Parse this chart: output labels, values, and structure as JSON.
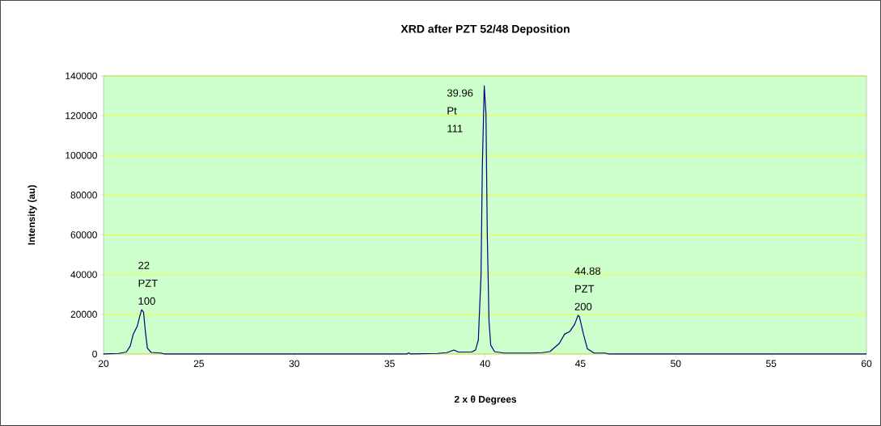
{
  "chart_data": {
    "type": "line",
    "title": "XRD after PZT 52/48 Deposition",
    "xlabel": "2 x θ Degrees",
    "ylabel": "Intensity (au)",
    "x": [
      20,
      20.8,
      21.2,
      21.4,
      21.56,
      21.77,
      21.9,
      22.0,
      22.1,
      22.2,
      22.3,
      22.5,
      23.0,
      23.2,
      30,
      35.9,
      36.0,
      36.1,
      37.5,
      38.0,
      38.37,
      38.6,
      39.3,
      39.5,
      39.65,
      39.72,
      39.79,
      39.86,
      39.96,
      40.05,
      40.12,
      40.21,
      40.3,
      40.5,
      41.0,
      42.5,
      43.0,
      43.4,
      43.89,
      44.17,
      44.45,
      44.7,
      44.88,
      44.95,
      45.16,
      45.37,
      45.72,
      46.3,
      46.5,
      60
    ],
    "values": [
      0,
      300,
      1000,
      4000,
      10000,
      14000,
      19000,
      22300,
      21000,
      11000,
      3000,
      800,
      500,
      0,
      0,
      0,
      600,
      0,
      300,
      700,
      2000,
      1000,
      1000,
      2000,
      7000,
      23600,
      39000,
      94000,
      135000,
      121000,
      60000,
      16700,
      4500,
      1200,
      500,
      500,
      700,
      1200,
      5300,
      10000,
      11400,
      15000,
      19500,
      18800,
      10000,
      2600,
      500,
      500,
      0,
      0
    ],
    "color": "#000080",
    "marker": "none",
    "line_style": "solid",
    "grid": "y",
    "xlim": [
      20,
      60
    ],
    "ylim": [
      0,
      140000
    ],
    "xticks": [
      20,
      25,
      30,
      35,
      40,
      45,
      50,
      55,
      60
    ],
    "yticks": [
      0,
      20000,
      40000,
      60000,
      80000,
      100000,
      120000,
      140000
    ],
    "annotations": [
      {
        "text": "22 PZT 100",
        "x": 22,
        "y": 22300
      },
      {
        "text": "39.96 Pt 111",
        "x": 39.96,
        "y": 135000
      },
      {
        "text": "44.88 PZT 200",
        "x": 44.88,
        "y": 19500
      }
    ]
  }
}
